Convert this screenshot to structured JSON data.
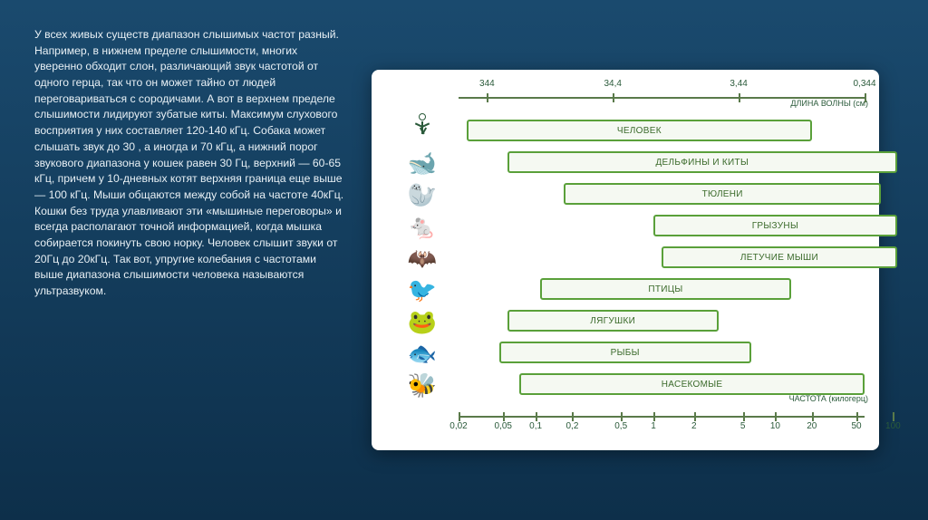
{
  "paragraph": "У всех живых существ диапазон слышимых частот разный. Например, в нижнем пределе слышимости, многих уверенно обходит слон, различающий звук частотой от одного герца, так что он может тайно от людей переговариваться с сородичами. А вот в верхнем пределе слышимости лидируют зубатые киты. Максимум слухового восприятия у них составляет 120-140 кГц. Собака может слышать звук до 30 , а иногда и 70 кГц, а нижний порог звукового диапазона у кошек равен 30 Гц, верхний — 60-65 кГц, причем у 10-дневных котят верхняя граница еще выше — 100 кГц. Мыши общаются между собой на частоте 40кГц. Кошки без труда улавливают эти «мышиные переговоры» и всегда располагают точной информацией, когда мышка собирается покинуть свою норку. Человек слышит звуки от 20Гц до 20кГц. Так вот,  упругие колебания с частотами выше диапазона слышимости человека называются ультразвуком.",
  "chart": {
    "type": "range-bar",
    "axis_top": {
      "title": "ДЛИНА ВОЛНЫ (см)",
      "ticks": [
        {
          "pos_pct": 7,
          "label": "344"
        },
        {
          "pos_pct": 38,
          "label": "34,4"
        },
        {
          "pos_pct": 69,
          "label": "3,44"
        },
        {
          "pos_pct": 100,
          "label": "0,344"
        }
      ]
    },
    "axis_bottom": {
      "title": "ЧАСТОТА (килогерц)",
      "ticks": [
        {
          "pos_pct": 0,
          "label": "0,02"
        },
        {
          "pos_pct": 11,
          "label": "0,05"
        },
        {
          "pos_pct": 19,
          "label": "0,1"
        },
        {
          "pos_pct": 28,
          "label": "0,2"
        },
        {
          "pos_pct": 40,
          "label": "0,5"
        },
        {
          "pos_pct": 48,
          "label": "1"
        },
        {
          "pos_pct": 58,
          "label": "2"
        },
        {
          "pos_pct": 70,
          "label": "5"
        },
        {
          "pos_pct": 78,
          "label": "10"
        },
        {
          "pos_pct": 87,
          "label": "20"
        },
        {
          "pos_pct": 98,
          "label": "50"
        },
        {
          "pos_pct": 107,
          "label": "100"
        }
      ]
    },
    "bar_border_color": "#5aa03a",
    "bar_fill_color": "#f5f9f2",
    "rows": [
      {
        "icon": "human",
        "label": "ЧЕЛОВЕК",
        "start_pct": 2,
        "end_pct": 87
      },
      {
        "icon": "whale",
        "label": "ДЕЛЬФИНЫ И КИТЫ",
        "start_pct": 12,
        "end_pct": 108
      },
      {
        "icon": "seal",
        "label": "ТЮЛЕНИ",
        "start_pct": 26,
        "end_pct": 104
      },
      {
        "icon": "rodent",
        "label": "ГРЫЗУНЫ",
        "start_pct": 48,
        "end_pct": 108
      },
      {
        "icon": "bat",
        "label": "ЛЕТУЧИЕ МЫШИ",
        "start_pct": 50,
        "end_pct": 108
      },
      {
        "icon": "bird",
        "label": "ПТИЦЫ",
        "start_pct": 20,
        "end_pct": 82
      },
      {
        "icon": "frog",
        "label": "ЛЯГУШКИ",
        "start_pct": 12,
        "end_pct": 64
      },
      {
        "icon": "fish",
        "label": "РЫБЫ",
        "start_pct": 10,
        "end_pct": 72
      },
      {
        "icon": "insect",
        "label": "НАСЕКОМЫЕ",
        "start_pct": 15,
        "end_pct": 100
      }
    ],
    "icon_glyphs": {
      "whale": "🐋",
      "seal": "🦭",
      "rodent": "🐁",
      "bat": "🦇",
      "bird": "🐦",
      "frog": "🐸",
      "fish": "🐟",
      "insect": "🐝"
    },
    "colors": {
      "axis_line": "#5a7a4a",
      "axis_text": "#2a5a3a",
      "background": "#ffffff"
    }
  }
}
